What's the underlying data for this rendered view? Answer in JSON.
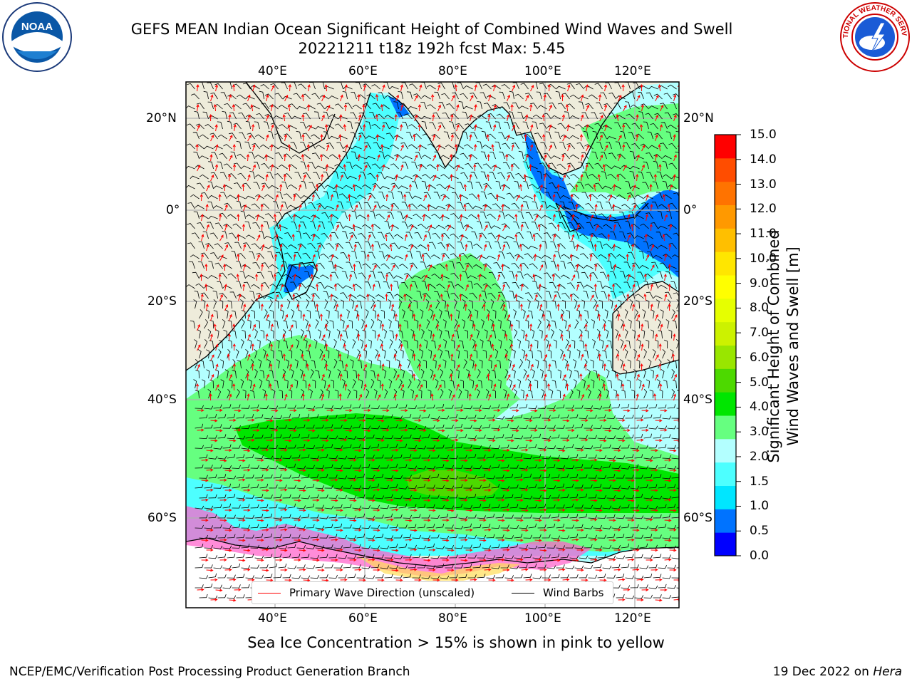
{
  "title": {
    "line1": "GEFS MEAN Indian Ocean Significant Height of Combined Wind Waves and Swell",
    "line2": "20221211 t18z 192h fcst   Max: 5.45"
  },
  "logos": {
    "noaa_text": "NOAA",
    "nws_text": "NATIONAL WEATHER SERVICE"
  },
  "axes": {
    "lon_ticks": [
      "40°E",
      "60°E",
      "80°E",
      "100°E",
      "120°E"
    ],
    "lat_ticks": [
      "20°N",
      "0°",
      "20°S",
      "40°S",
      "60°S"
    ]
  },
  "colorbar": {
    "label_line1": "Significant Height of Combined",
    "label_line2": "Wind Waves and Swell [m]",
    "ticks": [
      "15.0",
      "14.0",
      "13.0",
      "12.0",
      "11.0",
      "10.0",
      "9.0",
      "8.0",
      "7.0",
      "6.0",
      "5.0",
      "4.0",
      "3.0",
      "2.0",
      "1.5",
      "1.0",
      "0.5",
      "0.0"
    ],
    "colors_bottom_to_top": [
      "#0000ff",
      "#0073ff",
      "#00e6ff",
      "#4dffff",
      "#b3ffff",
      "#66ff80",
      "#00e600",
      "#4dd900",
      "#99e600",
      "#ccf200",
      "#e6ff00",
      "#ffff00",
      "#ffe600",
      "#ffbf00",
      "#ff9900",
      "#ff7300",
      "#ff4d00",
      "#ff0000"
    ]
  },
  "legend": {
    "wave_label": "Primary Wave Direction (unscaled)",
    "wind_label": "Wind Barbs",
    "wave_color": "#ff0000",
    "wind_color": "#000000"
  },
  "note": "Sea Ice Concentration > 15% is shown in pink to yellow",
  "footer": {
    "left": "NCEP/EMC/Verification Post Processing Product Generation Branch",
    "right_prefix": "19 Dec 2022 on ",
    "right_host": "Hera"
  },
  "map_data": {
    "lon_range": [
      20,
      130
    ],
    "lat_range": [
      -75,
      28
    ],
    "max_value": 5.45
  }
}
